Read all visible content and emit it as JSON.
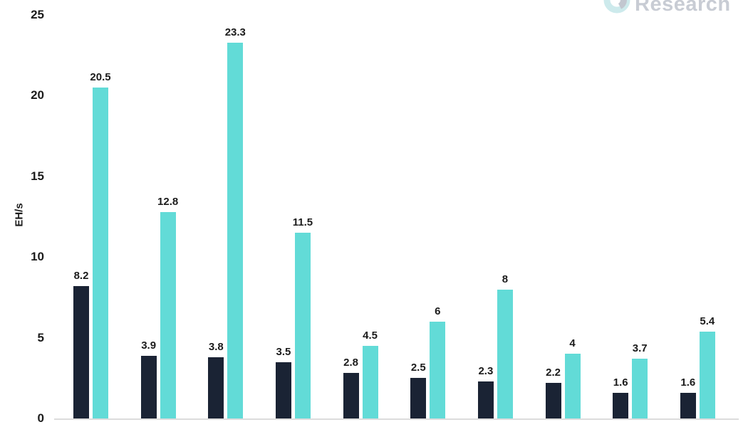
{
  "logo": {
    "text": "Research",
    "icon": "partial-circle-logo",
    "text_color": "#c8ccd4",
    "icon_teal": "#cdeaec",
    "icon_gray": "#c2c7d0"
  },
  "chart_data": {
    "type": "bar",
    "title": "",
    "xlabel": "",
    "ylabel": "EH/s",
    "ylim": [
      0,
      25
    ],
    "yticks": [
      0,
      5,
      10,
      15,
      20,
      25
    ],
    "grid": false,
    "legend": false,
    "value_labels_shown": true,
    "categories": [
      "",
      "",
      "",
      "",
      "",
      "",
      "",
      "",
      "",
      ""
    ],
    "series": [
      {
        "name": "series-dark-navy",
        "color": "#1a2334",
        "values": [
          8.2,
          3.9,
          3.8,
          3.5,
          2.8,
          2.5,
          2.3,
          2.2,
          1.6,
          1.6
        ]
      },
      {
        "name": "series-teal",
        "color": "#62dbd7",
        "values": [
          20.5,
          12.8,
          23.3,
          11.5,
          4.5,
          6,
          8,
          4,
          3.7,
          5.4
        ]
      }
    ],
    "axis_line_color": "#dcdcdc",
    "text_color": "#1b1b1b"
  }
}
